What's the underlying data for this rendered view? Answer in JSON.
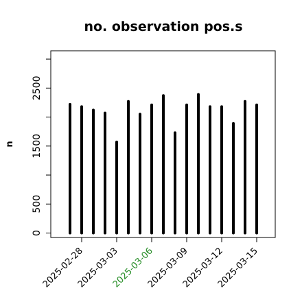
{
  "chart_data": {
    "type": "bar",
    "title": "no. observation pos.s",
    "xlabel": "",
    "ylabel": "n",
    "ylim": [
      0,
      3100
    ],
    "yticks": [
      0,
      500,
      1500,
      2500
    ],
    "x": [
      "2025-02-27",
      "2025-02-28",
      "2025-03-01",
      "2025-03-02",
      "2025-03-03",
      "2025-03-04",
      "2025-03-05",
      "2025-03-06",
      "2025-03-07",
      "2025-03-08",
      "2025-03-09",
      "2025-03-10",
      "2025-03-11",
      "2025-03-12",
      "2025-03-13",
      "2025-03-14",
      "2025-03-15"
    ],
    "values": [
      2220,
      2180,
      2120,
      2070,
      1570,
      2270,
      2050,
      2210,
      2370,
      1730,
      2210,
      2390,
      2180,
      2180,
      1890,
      2270,
      2210
    ],
    "x_tick_labels": [
      "2025-02-28",
      "2025-03-03",
      "2025-03-06",
      "2025-03-09",
      "2025-03-12",
      "2025-03-15"
    ],
    "highlight_tick": "2025-03-06",
    "colors": {
      "bars": "#000000",
      "highlight_tick": "#228B22",
      "axis": "#000000"
    },
    "grid": false,
    "legend": "none"
  }
}
